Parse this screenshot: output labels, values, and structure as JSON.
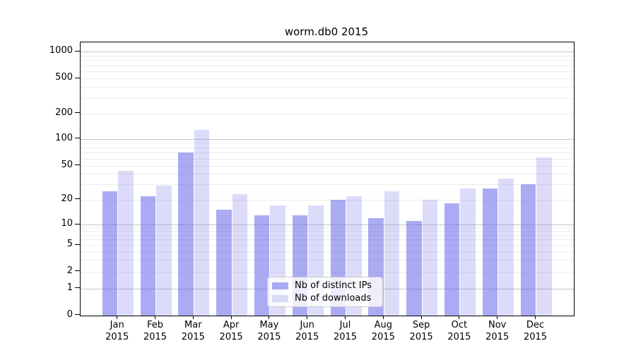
{
  "chart_data": {
    "type": "bar",
    "title": "worm.db0 2015",
    "months": [
      "Jan",
      "Feb",
      "Mar",
      "Apr",
      "May",
      "Jun",
      "Jul",
      "Aug",
      "Sep",
      "Oct",
      "Nov",
      "Dec"
    ],
    "year": "2015",
    "series": [
      {
        "name": "Nb of distinct IPs",
        "color": "#a9a9f3",
        "fill_rgba": "rgba(88,88,232,0.50)",
        "values": [
          25,
          22,
          70,
          15,
          13,
          13,
          20,
          12,
          11,
          18,
          27,
          30
        ]
      },
      {
        "name": "Nb of downloads",
        "color": "#dbdbf8",
        "fill_rgba": "rgba(88,88,232,0.21)",
        "values": [
          43,
          29,
          128,
          23,
          17,
          17,
          22,
          25,
          20,
          27,
          35,
          62
        ]
      }
    ],
    "y_axis": {
      "scale": "log above 1, linear 0-1 (asinh-like)",
      "ticks": [
        0,
        1,
        2,
        5,
        10,
        20,
        50,
        100,
        200,
        500,
        1000
      ],
      "minor_gridlines": [
        2,
        3,
        4,
        5,
        6,
        7,
        8,
        9,
        20,
        30,
        40,
        50,
        60,
        70,
        80,
        90,
        200,
        300,
        400,
        500,
        600,
        700,
        800,
        900
      ],
      "major_gridlines": [
        1,
        10,
        100,
        1000
      ],
      "ylim": [
        0,
        1300
      ]
    },
    "legend_position": "lower center",
    "grid": "horizontal major + minor"
  },
  "colors": {
    "major_grid": "#c6c6c6",
    "minor_grid": "#ececec",
    "spine": "#000000",
    "text": "#000000"
  }
}
